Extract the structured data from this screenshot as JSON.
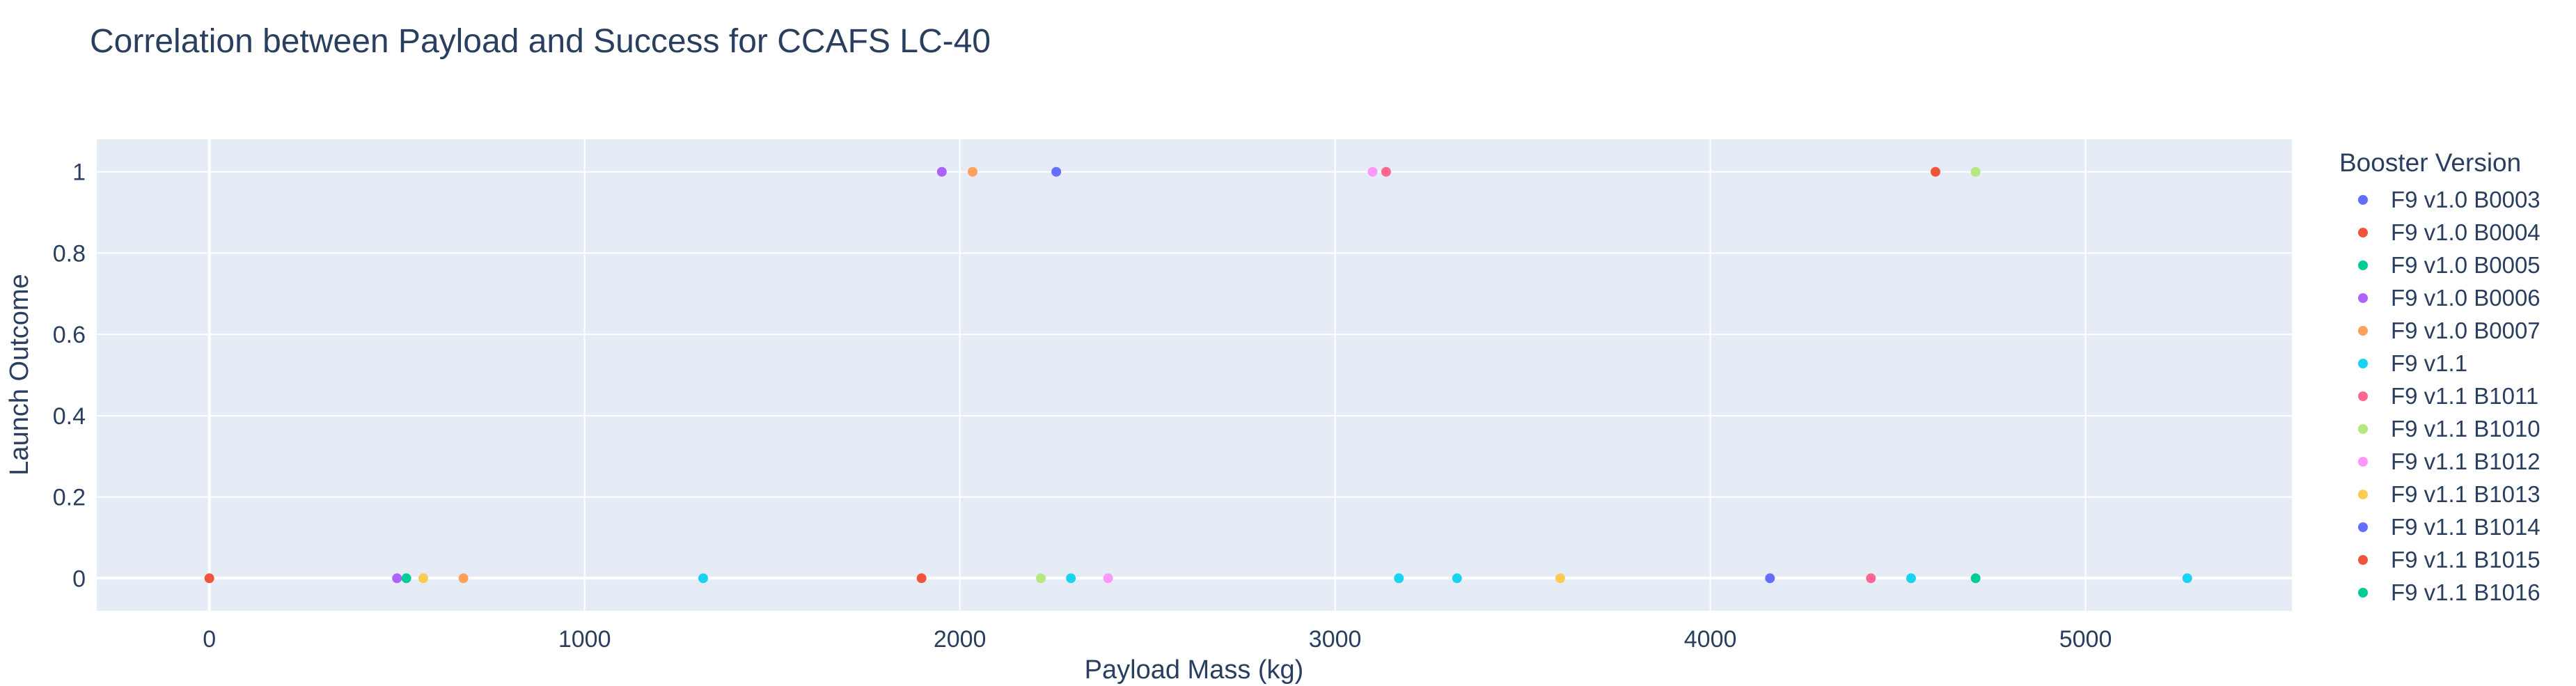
{
  "chart_data": {
    "type": "scatter",
    "title": "Correlation between Payload and Success for CCAFS LC-40",
    "xlabel": "Payload Mass (kg)",
    "ylabel": "Launch Outcome",
    "xlim": [
      -300,
      5550
    ],
    "ylim": [
      -0.08,
      1.08
    ],
    "xticks": [
      0,
      1000,
      2000,
      3000,
      4000,
      5000
    ],
    "yticks": [
      0,
      0.2,
      0.4,
      0.6,
      0.8,
      1
    ],
    "grid": true,
    "legend_title": "Booster Version",
    "legend_position": "right",
    "series": [
      {
        "name": "F9 v1.0  B0003",
        "color": "#636efa",
        "x": [],
        "y": []
      },
      {
        "name": "F9 v1.0  B0004",
        "color": "#ef553b",
        "x": [
          0
        ],
        "y": [
          0
        ]
      },
      {
        "name": "F9 v1.0  B0005",
        "color": "#00cc96",
        "x": [
          525
        ],
        "y": [
          0
        ]
      },
      {
        "name": "F9 v1.0  B0006",
        "color": "#ab63fa",
        "x": [
          500,
          1952
        ],
        "y": [
          0,
          1
        ]
      },
      {
        "name": "F9 v1.0  B0007",
        "color": "#ffa15a",
        "x": [
          677,
          2034
        ],
        "y": [
          0,
          1
        ]
      },
      {
        "name": "F9 v1.1",
        "color": "#19d3f3",
        "x": [
          1316,
          2296,
          3170,
          3325,
          4535,
          5271
        ],
        "y": [
          0,
          0,
          0,
          0,
          0,
          0
        ]
      },
      {
        "name": "F9 v1.1 B1011",
        "color": "#ff6692",
        "x": [
          3136,
          4428
        ],
        "y": [
          1,
          0
        ]
      },
      {
        "name": "F9 v1.1 B1010",
        "color": "#b6e880",
        "x": [
          2216,
          4707
        ],
        "y": [
          0,
          1
        ]
      },
      {
        "name": "F9 v1.1 B1012",
        "color": "#ff97ff",
        "x": [
          2395,
          3100
        ],
        "y": [
          0,
          1
        ]
      },
      {
        "name": "F9 v1.1 B1013",
        "color": "#fecb52",
        "x": [
          570,
          3600
        ],
        "y": [
          0,
          0
        ]
      },
      {
        "name": "F9 v1.1 B1014",
        "color": "#636efa",
        "x": [
          2257,
          4159
        ],
        "y": [
          1,
          0
        ]
      },
      {
        "name": "F9 v1.1 B1015",
        "color": "#ef553b",
        "x": [
          1898,
          4600
        ],
        "y": [
          0,
          1
        ]
      },
      {
        "name": "F9 v1.1 B1016",
        "color": "#00cc96",
        "x": [
          4707
        ],
        "y": [
          0
        ]
      }
    ]
  }
}
